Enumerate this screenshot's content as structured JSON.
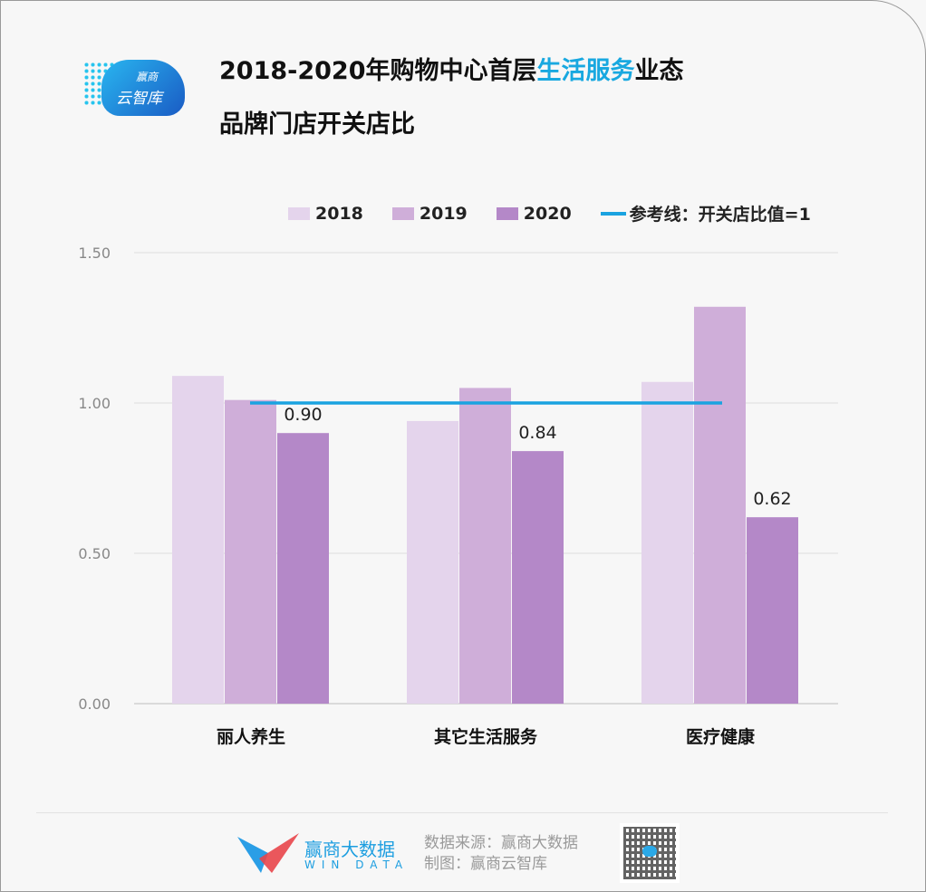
{
  "header": {
    "logo_text_1": "赢商",
    "logo_text_2": "云智库",
    "title_line1_pre": "2018-2020年购物中心首层",
    "title_line1_highlight": "生活服务",
    "title_line1_post": "业态",
    "title_line2": "品牌门店开关店比"
  },
  "legend": {
    "items": [
      {
        "label": "2018"
      },
      {
        "label": "2019"
      },
      {
        "label": "2020"
      }
    ],
    "reference_label": "参考线：开关店比值=1"
  },
  "chart_data": {
    "type": "bar",
    "title": "2018-2020年购物中心首层生活服务业态品牌门店开关店比",
    "categories": [
      "丽人养生",
      "其它生活服务",
      "医疗健康"
    ],
    "series": [
      {
        "name": "2018",
        "color": "#e4d4ec",
        "values": [
          1.09,
          0.94,
          1.07
        ]
      },
      {
        "name": "2019",
        "color": "#cfaed9",
        "values": [
          1.01,
          1.05,
          1.32
        ]
      },
      {
        "name": "2020",
        "color": "#b488c8",
        "values": [
          0.9,
          0.84,
          0.62
        ]
      }
    ],
    "data_labels": [
      "0.90",
      "0.84",
      "0.62"
    ],
    "reference_line": {
      "value": 1,
      "color": "#1aa3e0"
    },
    "yticks": [
      "0.00",
      "0.50",
      "1.00",
      "1.50"
    ],
    "ylim": [
      0,
      1.5
    ],
    "xlabel": "",
    "ylabel": "",
    "grid": true,
    "legend_position": "top-right"
  },
  "footer": {
    "brand_name": "赢商大数据",
    "brand_en": "WIN DATA",
    "source": "数据来源：赢商大数据",
    "maker": "制图：赢商云智库"
  }
}
